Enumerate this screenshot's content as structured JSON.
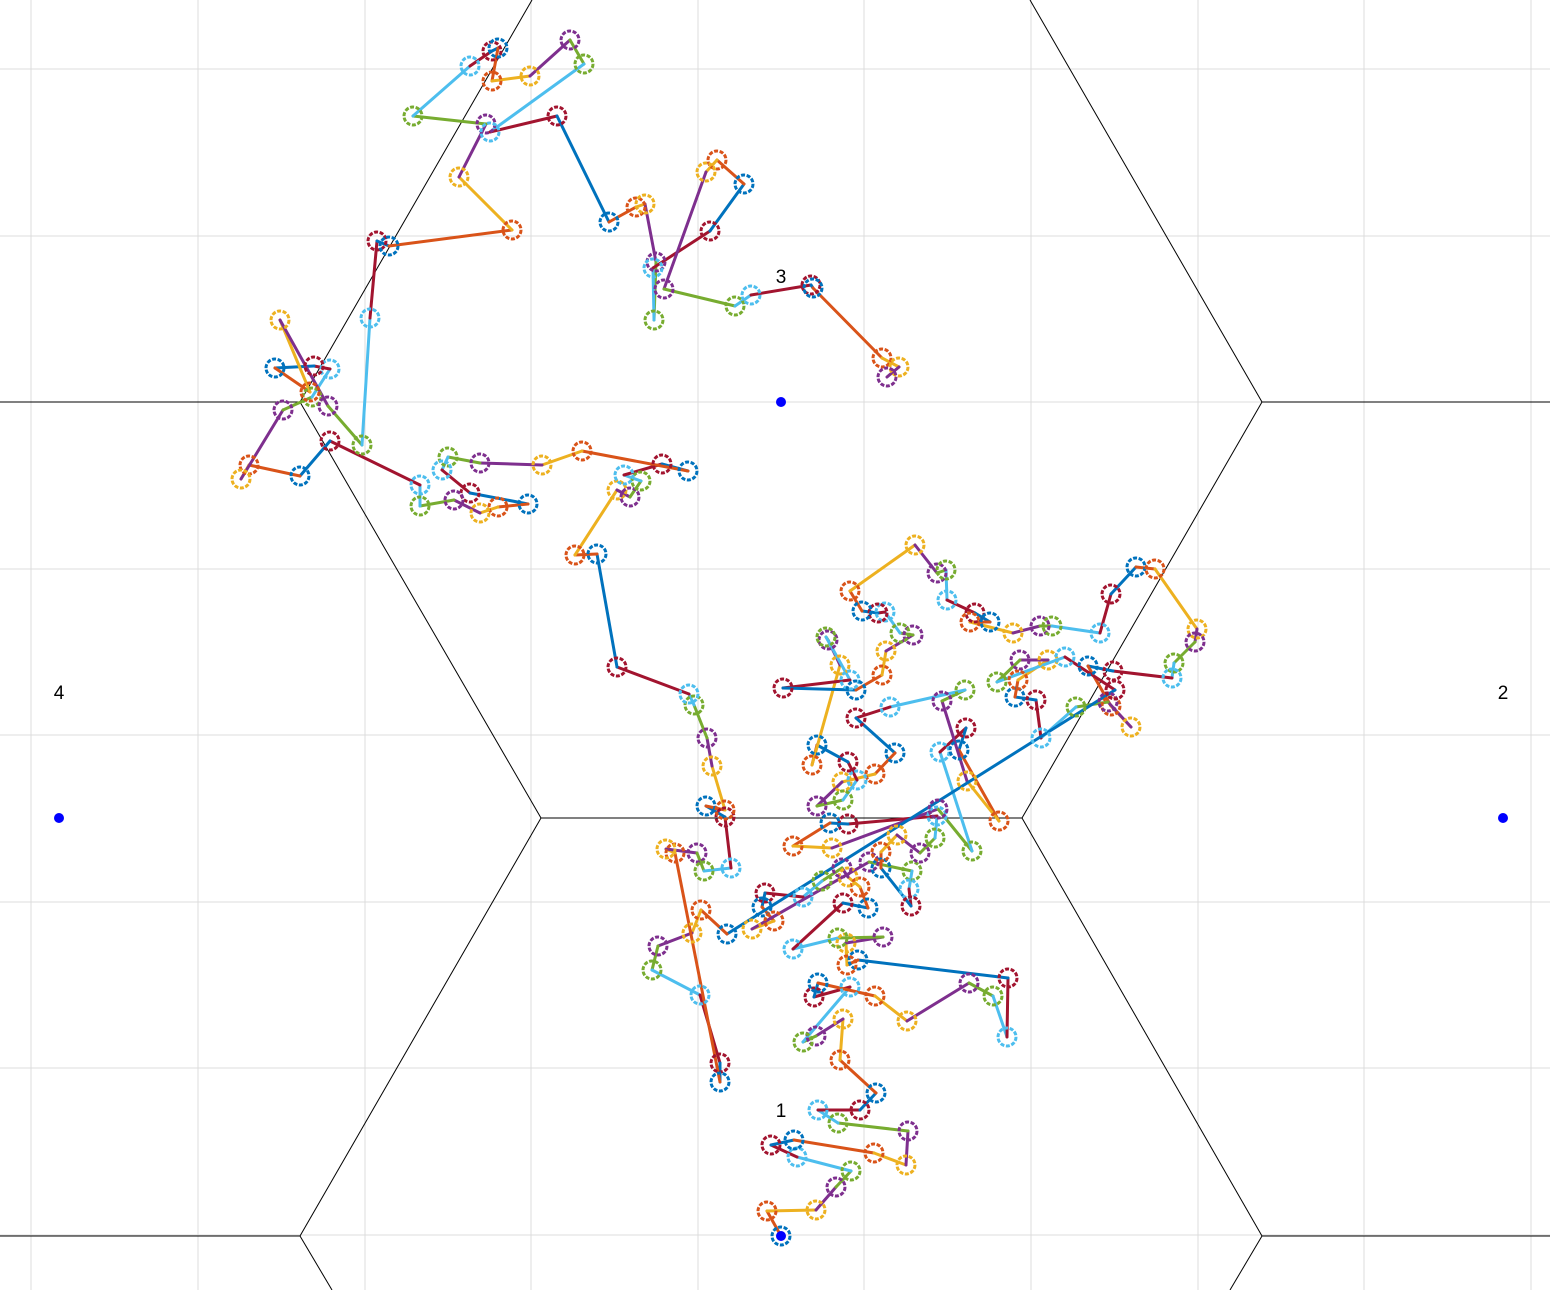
{
  "chart_data": {
    "type": "walk",
    "xlim": [
      0,
      1550
    ],
    "ylim": [
      1290,
      0
    ],
    "xticks": [
      31,
      198,
      365,
      531,
      698,
      864,
      1031,
      1198,
      1364,
      1531
    ],
    "yticks": [
      69,
      236,
      402,
      569,
      735,
      902,
      1068,
      1235
    ],
    "grid": true,
    "colors": [
      "#0072BD",
      "#D95319",
      "#EDB120",
      "#7E2F8E",
      "#77AC30",
      "#4DBEEE",
      "#A2142F"
    ],
    "x": [
      781,
      767,
      816,
      836,
      851,
      797,
      771,
      794,
      874,
      906,
      908,
      838,
      818,
      860,
      876,
      840,
      843,
      816,
      803,
      850,
      814,
      818,
      875,
      907,
      969,
      993,
      1007,
      1008,
      858,
      847,
      846,
      883,
      838,
      793,
      843,
      868,
      860,
      848,
      842,
      822,
      803,
      765,
      762,
      774,
      752,
      869,
      912,
      909,
      911,
      881,
      881,
      897,
      920,
      935,
      937,
      848,
      830,
      793,
      832,
      938,
      972,
      940,
      966,
      959,
      999,
      967,
      942,
      965,
      890,
      856,
      895,
      875,
      842,
      817,
      843,
      857,
      848,
      817,
      812,
      840,
      828,
      826,
      850,
      783,
      856,
      882,
      886,
      913,
      900,
      885,
      878,
      862,
      850,
      915,
      937,
      946,
      947,
      975,
      990,
      970,
      1013,
      1040,
      1052,
      1100,
      1111,
      1136,
      1155,
      1197,
      1195,
      1174,
      1172,
      1113,
      1088,
      1111,
      1131,
      1108,
      1076,
      1041,
      1036,
      1015,
      1018,
      1048,
      1020,
      997,
      1065,
      1115,
      727,
      701,
      692,
      658,
      652,
      700,
      720,
      720,
      675,
      666,
      697,
      704,
      731,
      725,
      706,
      725,
      712,
      707,
      694,
      689,
      617,
      597,
      575,
      617,
      630,
      641,
      624,
      662,
      688,
      582,
      542,
      480,
      448,
      442,
      470,
      528,
      498,
      480,
      454,
      420,
      420,
      330,
      300,
      249,
      241,
      283,
      312,
      330,
      314,
      275,
      310,
      280,
      328,
      362,
      370,
      377,
      389,
      512,
      459,
      486,
      413,
      470,
      492,
      498,
      492,
      530,
      570,
      584,
      490,
      557,
      609,
      636,
      645,
      656,
      654,
      653,
      710,
      744,
      717,
      706,
      664,
      735,
      751,
      811,
      813,
      882,
      899,
      887
    ],
    "y": [
      1236,
      1211,
      1210,
      1187,
      1171,
      1157,
      1145,
      1140,
      1153,
      1165,
      1131,
      1123,
      1110,
      1110,
      1093,
      1060,
      1019,
      1036,
      1042,
      987,
      997,
      983,
      996,
      1021,
      983,
      996,
      1037,
      978,
      960,
      965,
      943,
      937,
      938,
      949,
      903,
      908,
      887,
      877,
      868,
      881,
      897,
      893,
      907,
      921,
      929,
      862,
      871,
      889,
      906,
      868,
      852,
      835,
      853,
      838,
      816,
      824,
      823,
      846,
      848,
      809,
      851,
      752,
      728,
      750,
      821,
      781,
      701,
      690,
      707,
      718,
      753,
      774,
      782,
      806,
      800,
      780,
      762,
      745,
      765,
      665,
      640,
      637,
      680,
      688,
      690,
      675,
      651,
      635,
      633,
      612,
      613,
      611,
      591,
      545,
      573,
      570,
      600,
      613,
      622,
      622,
      633,
      626,
      626,
      633,
      594,
      567,
      569,
      629,
      642,
      663,
      678,
      671,
      666,
      706,
      727,
      702,
      707,
      738,
      700,
      697,
      680,
      660,
      660,
      682,
      657,
      690,
      934,
      910,
      933,
      946,
      970,
      995,
      1063,
      1082,
      853,
      849,
      853,
      871,
      868,
      817,
      806,
      810,
      766,
      738,
      705,
      694,
      667,
      554,
      555,
      490,
      497,
      481,
      475,
      464,
      471,
      451,
      465,
      463,
      457,
      470,
      493,
      504,
      507,
      513,
      500,
      506,
      485,
      441,
      476,
      465,
      479,
      410,
      397,
      369,
      366,
      368,
      392,
      320,
      406,
      445,
      318,
      241,
      246,
      230,
      177,
      124,
      116,
      66,
      51,
      48,
      81,
      76,
      40,
      64,
      132,
      116,
      222,
      207,
      204,
      262,
      320,
      268,
      231,
      184,
      160,
      172,
      289,
      306,
      295,
      285,
      288,
      358,
      367,
      377
    ],
    "centers": {
      "color": "#0000ff",
      "labels": [
        "1",
        "2",
        "3",
        "4"
      ],
      "x": [
        781,
        1503,
        781,
        59
      ],
      "y": [
        1236,
        818,
        402,
        818
      ]
    }
  }
}
